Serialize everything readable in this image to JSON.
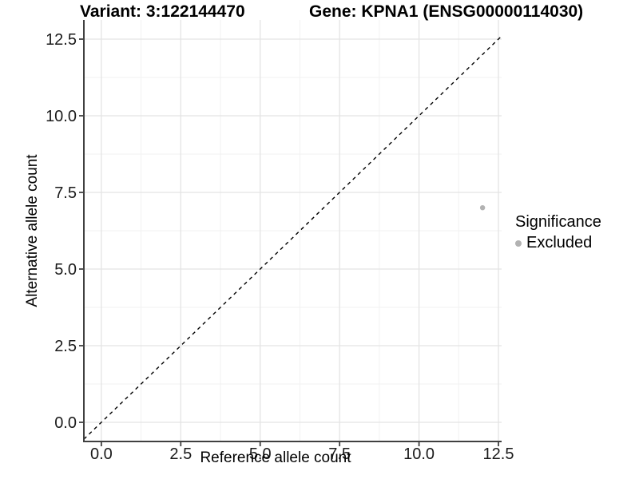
{
  "figure": {
    "title_left": "Variant: 3:122144470",
    "title_right": "Gene: KPNA1 (ENSG00000114030)"
  },
  "chart_data": {
    "type": "scatter",
    "title": "Variant: 3:122144470  /  Gene: KPNA1 (ENSG00000114030)",
    "xlabel": "Reference allele count",
    "ylabel": "Alternative allele count",
    "xlim": [
      -0.55,
      12.6
    ],
    "ylim": [
      -0.625,
      13.125
    ],
    "x_ticks": [
      0.0,
      2.5,
      5.0,
      7.5,
      10.0,
      12.5
    ],
    "y_ticks": [
      0.0,
      2.5,
      5.0,
      7.5,
      10.0,
      12.5
    ],
    "tick_decimals": 1,
    "grid": true,
    "identity_line": {
      "type": "abline",
      "slope": 1,
      "intercept": 0,
      "style": "dashed",
      "color": "#000000"
    },
    "points": [
      {
        "x": 12,
        "y": 7,
        "significance": "Excluded"
      }
    ],
    "legend": {
      "title": "Significance",
      "position": "right",
      "items": [
        {
          "label": "Excluded",
          "color": "#b2b2b2"
        }
      ]
    },
    "colors": {
      "background": "#ffffff",
      "grid_major": "#e4e4e4",
      "grid_minor": "#f1f1f1",
      "axis_line": "#404040",
      "tick_label": "#1a1a1a",
      "point_excluded": "#b2b2b2"
    }
  }
}
